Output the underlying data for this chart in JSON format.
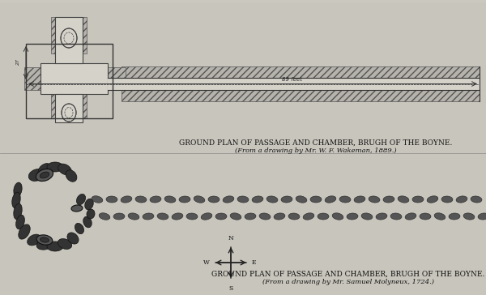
{
  "title1": "GROUND PLAN OF PASSAGE AND CHAMBER, BRUGH OF THE BOYNE.",
  "subtitle1": "(From a drawing by Mr. W. F. Wakeman, 1889.)",
  "title2": "GROUND PLAN OF PASSAGE AND CHAMBER, BRUGH OF THE BOYNE.",
  "subtitle2": "(From a drawing by Mr. Samuel Molyneux, 1724.)",
  "bg_color": "#d8d5cc",
  "fig_width": 6.0,
  "fig_height": 3.64,
  "dpi": 100
}
